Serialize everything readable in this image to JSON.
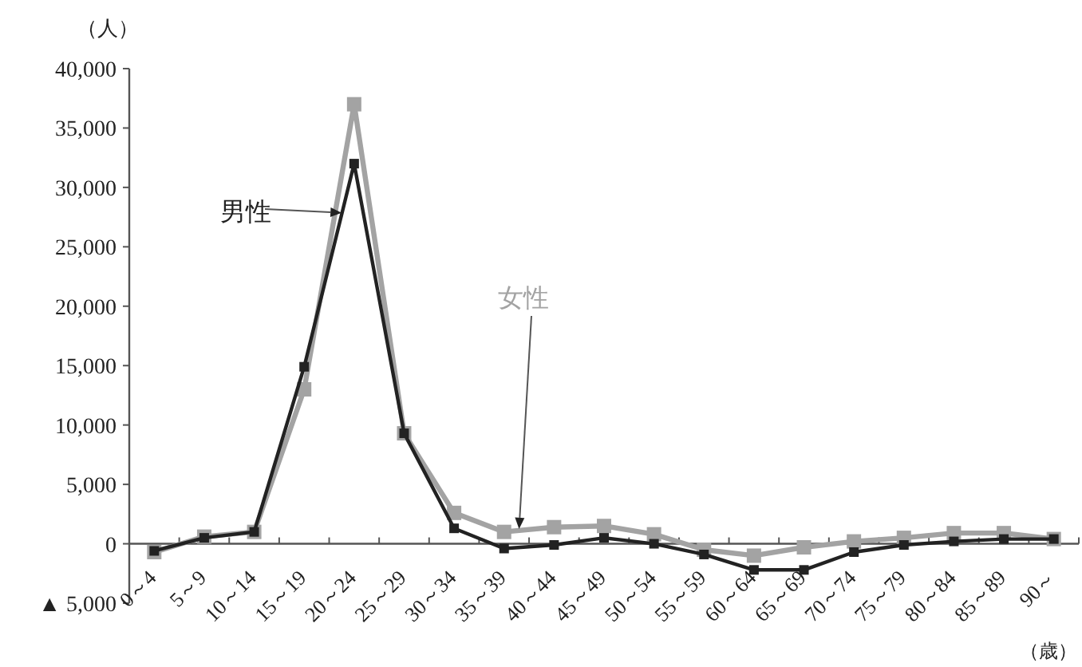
{
  "chart_data": {
    "type": "line",
    "ylabel": "（人）",
    "xlabel": "（歳）",
    "categories": [
      "0～4",
      "5～9",
      "10～14",
      "15～19",
      "20～24",
      "25～29",
      "30～34",
      "35～39",
      "40～44",
      "45～49",
      "50～54",
      "55～59",
      "60～64",
      "65～69",
      "70～74",
      "75～79",
      "80～84",
      "85～89",
      "90～"
    ],
    "series": [
      {
        "name": "男性",
        "color": "#222222",
        "values": [
          -600,
          500,
          1000,
          14900,
          32000,
          9300,
          1300,
          -400,
          -100,
          500,
          0,
          -900,
          -2200,
          -2200,
          -700,
          -100,
          200,
          400,
          400
        ]
      },
      {
        "name": "女性",
        "color": "#a3a3a3",
        "values": [
          -700,
          600,
          1000,
          13000,
          37000,
          9300,
          2600,
          1000,
          1400,
          1500,
          800,
          -500,
          -1000,
          -300,
          200,
          500,
          900,
          900,
          400
        ]
      }
    ],
    "ylim": [
      -5000,
      40000
    ],
    "yticks": [
      {
        "value": -5000,
        "label": "▲ 5,000"
      },
      {
        "value": 0,
        "label": "0"
      },
      {
        "value": 5000,
        "label": "5,000"
      },
      {
        "value": 10000,
        "label": "10,000"
      },
      {
        "value": 15000,
        "label": "15,000"
      },
      {
        "value": 20000,
        "label": "20,000"
      },
      {
        "value": 25000,
        "label": "25,000"
      },
      {
        "value": 30000,
        "label": "30,000"
      },
      {
        "value": 35000,
        "label": "35,000"
      },
      {
        "value": 40000,
        "label": "40,000"
      }
    ],
    "grid": false,
    "marker": "square",
    "line_style": "solid"
  }
}
